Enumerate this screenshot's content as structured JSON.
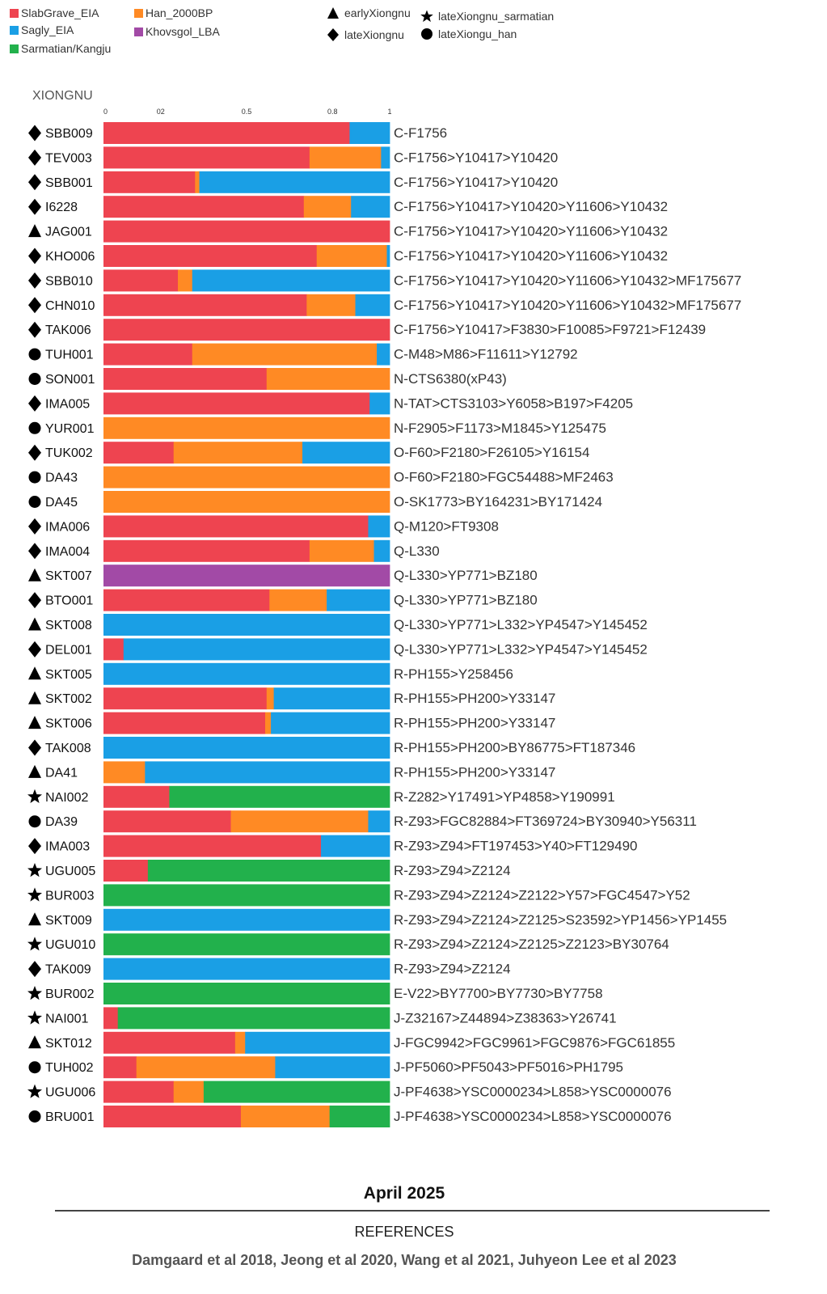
{
  "colors": {
    "SlabGrave_EIA": "#ee4450",
    "Sagly_EIA": "#1a9fe5",
    "Sarmatian/Kangju": "#22b14c",
    "Han_2000BP": "#ff8a24",
    "Khovsgol_LBA": "#a24aa6"
  },
  "legend": {
    "components": [
      {
        "name": "SlabGrave_EIA",
        "color": "#ee4450"
      },
      {
        "name": "Sagly_EIA",
        "color": "#1a9fe5"
      },
      {
        "name": "Sarmatian/Kangju",
        "color": "#22b14c"
      },
      {
        "name": "Han_2000BP",
        "color": "#ff8a24"
      },
      {
        "name": "Khovsgol_LBA",
        "color": "#a24aa6"
      }
    ],
    "groups": [
      {
        "name": "earlyXiongnu",
        "shape": "triangle"
      },
      {
        "name": "lateXiongnu",
        "shape": "diamond"
      },
      {
        "name": "lateXiongnu_sarmatian",
        "shape": "star"
      },
      {
        "name": "lateXiongu_han",
        "shape": "circle"
      }
    ]
  },
  "chart_data": {
    "type": "bar",
    "orientation": "horizontal",
    "stacked": true,
    "title": "XIONGNU",
    "xlim": [
      0,
      1
    ],
    "x_ticks": [
      "0",
      "02",
      "0.5",
      "0.8",
      "1"
    ],
    "series_order": [
      "SlabGrave_EIA",
      "Han_2000BP",
      "Sagly_EIA",
      "Sarmatian/Kangju",
      "Khovsgol_LBA"
    ],
    "samples": [
      {
        "id": "SBB009",
        "group": "diamond",
        "haplogroup": "C-F1756",
        "values": {
          "SlabGrave_EIA": 0.86,
          "Sagly_EIA": 0.14
        }
      },
      {
        "id": "TEV003",
        "group": "diamond",
        "haplogroup": "C-F1756>Y10417>Y10420",
        "values": {
          "SlabGrave_EIA": 0.72,
          "Han_2000BP": 0.25,
          "Sagly_EIA": 0.03
        }
      },
      {
        "id": "SBB001",
        "group": "diamond",
        "haplogroup": "C-F1756>Y10417>Y10420",
        "values": {
          "SlabGrave_EIA": 0.32,
          "Han_2000BP": 0.015,
          "Sagly_EIA": 0.665
        }
      },
      {
        "id": "I6228",
        "group": "diamond",
        "haplogroup": "C-F1756>Y10417>Y10420>Y11606>Y10432",
        "values": {
          "SlabGrave_EIA": 0.7,
          "Han_2000BP": 0.165,
          "Sagly_EIA": 0.135
        }
      },
      {
        "id": "JAG001",
        "group": "triangle",
        "haplogroup": "C-F1756>Y10417>Y10420>Y11606>Y10432",
        "values": {
          "SlabGrave_EIA": 1.0
        }
      },
      {
        "id": "KHO006",
        "group": "diamond",
        "haplogroup": "C-F1756>Y10417>Y10420>Y11606>Y10432",
        "values": {
          "SlabGrave_EIA": 0.745,
          "Han_2000BP": 0.245,
          "Sagly_EIA": 0.01
        }
      },
      {
        "id": "SBB010",
        "group": "diamond",
        "haplogroup": "C-F1756>Y10417>Y10420>Y11606>Y10432>MF175677",
        "values": {
          "SlabGrave_EIA": 0.26,
          "Han_2000BP": 0.05,
          "Sagly_EIA": 0.69
        }
      },
      {
        "id": "CHN010",
        "group": "diamond",
        "haplogroup": "C-F1756>Y10417>Y10420>Y11606>Y10432>MF175677",
        "values": {
          "SlabGrave_EIA": 0.71,
          "Han_2000BP": 0.17,
          "Sagly_EIA": 0.12
        }
      },
      {
        "id": "TAK006",
        "group": "diamond",
        "haplogroup": "C-F1756>Y10417>F3830>F10085>F9721>F12439",
        "values": {
          "SlabGrave_EIA": 1.0
        }
      },
      {
        "id": "TUH001",
        "group": "circle",
        "haplogroup": "C-M48>M86>F11611>Y12792",
        "values": {
          "SlabGrave_EIA": 0.31,
          "Han_2000BP": 0.645,
          "Sagly_EIA": 0.045
        }
      },
      {
        "id": "SON001",
        "group": "circle",
        "haplogroup": "N-CTS6380(xP43)",
        "values": {
          "SlabGrave_EIA": 0.57,
          "Han_2000BP": 0.43
        }
      },
      {
        "id": "IMA005",
        "group": "diamond",
        "haplogroup": "N-TAT>CTS3103>Y6058>B197>F4205",
        "values": {
          "SlabGrave_EIA": 0.93,
          "Sagly_EIA": 0.07
        }
      },
      {
        "id": "YUR001",
        "group": "circle",
        "haplogroup": "N-F2905>F1173>M1845>Y125475",
        "values": {
          "Han_2000BP": 1.0
        }
      },
      {
        "id": "TUK002",
        "group": "diamond",
        "haplogroup": "O-F60>F2180>F26105>Y16154",
        "values": {
          "SlabGrave_EIA": 0.245,
          "Han_2000BP": 0.45,
          "Sagly_EIA": 0.305
        }
      },
      {
        "id": "DA43",
        "group": "circle",
        "haplogroup": "O-F60>F2180>FGC54488>MF2463",
        "values": {
          "Han_2000BP": 1.0
        }
      },
      {
        "id": "DA45",
        "group": "circle",
        "haplogroup": "O-SK1773>BY164231>BY171424",
        "values": {
          "Han_2000BP": 1.0
        }
      },
      {
        "id": "IMA006",
        "group": "diamond",
        "haplogroup": "Q-M120>FT9308",
        "values": {
          "SlabGrave_EIA": 0.925,
          "Sagly_EIA": 0.075
        }
      },
      {
        "id": "IMA004",
        "group": "diamond",
        "haplogroup": "Q-L330",
        "values": {
          "SlabGrave_EIA": 0.72,
          "Han_2000BP": 0.225,
          "Sagly_EIA": 0.055
        }
      },
      {
        "id": "SKT007",
        "group": "triangle",
        "haplogroup": "Q-L330>YP771>BZ180",
        "values": {
          "Khovsgol_LBA": 1.0
        }
      },
      {
        "id": "BTO001",
        "group": "diamond",
        "haplogroup": "Q-L330>YP771>BZ180",
        "values": {
          "SlabGrave_EIA": 0.58,
          "Han_2000BP": 0.2,
          "Sagly_EIA": 0.22
        }
      },
      {
        "id": "SKT008",
        "group": "triangle",
        "haplogroup": "Q-L330>YP771>L332>YP4547>Y145452",
        "values": {
          "Sagly_EIA": 1.0
        }
      },
      {
        "id": "DEL001",
        "group": "diamond",
        "haplogroup": "Q-L330>YP771>L332>YP4547>Y145452",
        "values": {
          "SlabGrave_EIA": 0.07,
          "Sagly_EIA": 0.93
        }
      },
      {
        "id": "SKT005",
        "group": "triangle",
        "haplogroup": "R-PH155>Y258456",
        "values": {
          "Sagly_EIA": 1.0
        }
      },
      {
        "id": "SKT002",
        "group": "triangle",
        "haplogroup": "R-PH155>PH200>Y33147",
        "values": {
          "SlabGrave_EIA": 0.57,
          "Han_2000BP": 0.025,
          "Sagly_EIA": 0.405
        }
      },
      {
        "id": "SKT006",
        "group": "triangle",
        "haplogroup": "R-PH155>PH200>Y33147",
        "values": {
          "SlabGrave_EIA": 0.565,
          "Han_2000BP": 0.02,
          "Sagly_EIA": 0.415
        }
      },
      {
        "id": "TAK008",
        "group": "diamond",
        "haplogroup": "R-PH155>PH200>BY86775>FT187346",
        "values": {
          "Sagly_EIA": 1.0
        }
      },
      {
        "id": "DA41",
        "group": "triangle",
        "haplogroup": "R-PH155>PH200>Y33147",
        "values": {
          "Han_2000BP": 0.145,
          "Sagly_EIA": 0.855
        }
      },
      {
        "id": "NAI002",
        "group": "star",
        "haplogroup": "R-Z282>Y17491>YP4858>Y190991",
        "values": {
          "SlabGrave_EIA": 0.23,
          "Sarmatian/Kangju": 0.77
        }
      },
      {
        "id": "DA39",
        "group": "circle",
        "haplogroup": "R-Z93>FGC82884>FT369724>BY30940>Y56311",
        "values": {
          "SlabGrave_EIA": 0.445,
          "Han_2000BP": 0.48,
          "Sagly_EIA": 0.075
        }
      },
      {
        "id": "IMA003",
        "group": "diamond",
        "haplogroup": "R-Z93>Z94>FT197453>Y40>FT129490",
        "values": {
          "SlabGrave_EIA": 0.76,
          "Sagly_EIA": 0.24
        }
      },
      {
        "id": "UGU005",
        "group": "star",
        "haplogroup": "R-Z93>Z94>Z2124",
        "values": {
          "SlabGrave_EIA": 0.155,
          "Sarmatian/Kangju": 0.845
        }
      },
      {
        "id": "BUR003",
        "group": "star",
        "haplogroup": "R-Z93>Z94>Z2124>Z2122>Y57>FGC4547>Y52",
        "values": {
          "Sarmatian/Kangju": 1.0
        }
      },
      {
        "id": "SKT009",
        "group": "triangle",
        "haplogroup": "R-Z93>Z94>Z2124>Z2125>S23592>YP1456>YP1455",
        "values": {
          "Sagly_EIA": 1.0
        }
      },
      {
        "id": "UGU010",
        "group": "star",
        "haplogroup": "R-Z93>Z94>Z2124>Z2125>Z2123>BY30764",
        "values": {
          "Sarmatian/Kangju": 1.0
        }
      },
      {
        "id": "TAK009",
        "group": "diamond",
        "haplogroup": "R-Z93>Z94>Z2124",
        "values": {
          "Sagly_EIA": 1.0
        }
      },
      {
        "id": "BUR002",
        "group": "star",
        "haplogroup": "E-V22>BY7700>BY7730>BY7758",
        "values": {
          "Sarmatian/Kangju": 1.0
        }
      },
      {
        "id": "NAI001",
        "group": "star",
        "haplogroup": "J-Z32167>Z44894>Z38363>Y26741",
        "values": {
          "SlabGrave_EIA": 0.05,
          "Sarmatian/Kangju": 0.95
        }
      },
      {
        "id": "SKT012",
        "group": "triangle",
        "haplogroup": "J-FGC9942>FGC9961>FGC9876>FGC61855",
        "values": {
          "SlabGrave_EIA": 0.46,
          "Han_2000BP": 0.035,
          "Sagly_EIA": 0.505
        }
      },
      {
        "id": "TUH002",
        "group": "circle",
        "haplogroup": "J-PF5060>PF5043>PF5016>PH1795",
        "values": {
          "SlabGrave_EIA": 0.115,
          "Han_2000BP": 0.485,
          "Sagly_EIA": 0.4
        }
      },
      {
        "id": "UGU006",
        "group": "star",
        "haplogroup": "J-PF4638>YSC0000234>L858>YSC0000076",
        "values": {
          "SlabGrave_EIA": 0.245,
          "Han_2000BP": 0.105,
          "Sarmatian/Kangju": 0.65
        }
      },
      {
        "id": "BRU001",
        "group": "circle",
        "haplogroup": "J-PF4638>YSC0000234>L858>YSC0000076",
        "values": {
          "SlabGrave_EIA": 0.48,
          "Han_2000BP": 0.31,
          "Sarmatian/Kangju": 0.21
        }
      }
    ]
  },
  "footer": {
    "date": "April 2025",
    "references_title": "REFERENCES",
    "references": "Damgaard et al 2018, Jeong et al 2020, Wang et al 2021, Juhyeon Lee et al 2023"
  }
}
